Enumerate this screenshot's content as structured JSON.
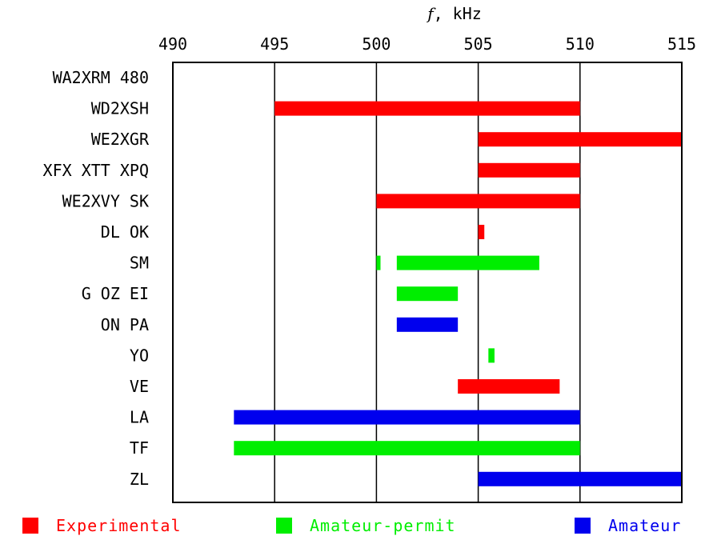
{
  "chart_data": {
    "type": "bar",
    "orientation": "horizontal-range",
    "xlabel_symbol": "f",
    "xlabel_unit": ", kHz",
    "xlim": [
      490,
      515
    ],
    "xticks": [
      490,
      495,
      500,
      505,
      510,
      515
    ],
    "grid": "vertical-major",
    "legend_position": "bottom",
    "categories": [
      "WA2XRM 480",
      "WD2XSH",
      "WE2XGR",
      "XFX XTT XPQ",
      "WE2XVY SK",
      "DL OK",
      "SM",
      "G OZ EI",
      "ON PA",
      "YO",
      "VE",
      "LA",
      "TF",
      "ZL"
    ],
    "series": [
      {
        "name": "Experimental",
        "color": "#ff0000"
      },
      {
        "name": "Amateur-permit",
        "color": "#00ee00"
      },
      {
        "name": "Amateur",
        "color": "#0000ee"
      }
    ],
    "ranges": [
      {
        "category": "WD2XSH",
        "series": "Experimental",
        "x": [
          495,
          510
        ]
      },
      {
        "category": "WE2XGR",
        "series": "Experimental",
        "x": [
          505,
          515
        ]
      },
      {
        "category": "XFX XTT XPQ",
        "series": "Experimental",
        "x": [
          505,
          510
        ]
      },
      {
        "category": "WE2XVY SK",
        "series": "Experimental",
        "x": [
          500,
          510
        ]
      },
      {
        "category": "DL OK",
        "series": "Experimental",
        "x": [
          505,
          505.3
        ]
      },
      {
        "category": "SM",
        "series": "Amateur-permit",
        "x": [
          500,
          500.2
        ]
      },
      {
        "category": "SM",
        "series": "Amateur-permit",
        "x": [
          501,
          508
        ]
      },
      {
        "category": "G OZ EI",
        "series": "Amateur-permit",
        "x": [
          501,
          504
        ]
      },
      {
        "category": "ON PA",
        "series": "Amateur",
        "x": [
          501,
          504
        ]
      },
      {
        "category": "YO",
        "series": "Amateur-permit",
        "x": [
          505.5,
          505.8
        ]
      },
      {
        "category": "VE",
        "series": "Experimental",
        "x": [
          504,
          509
        ]
      },
      {
        "category": "LA",
        "series": "Amateur",
        "x": [
          493,
          510
        ]
      },
      {
        "category": "TF",
        "series": "Amateur-permit",
        "x": [
          493,
          510
        ]
      },
      {
        "category": "ZL",
        "series": "Amateur",
        "x": [
          505,
          515
        ]
      }
    ]
  }
}
